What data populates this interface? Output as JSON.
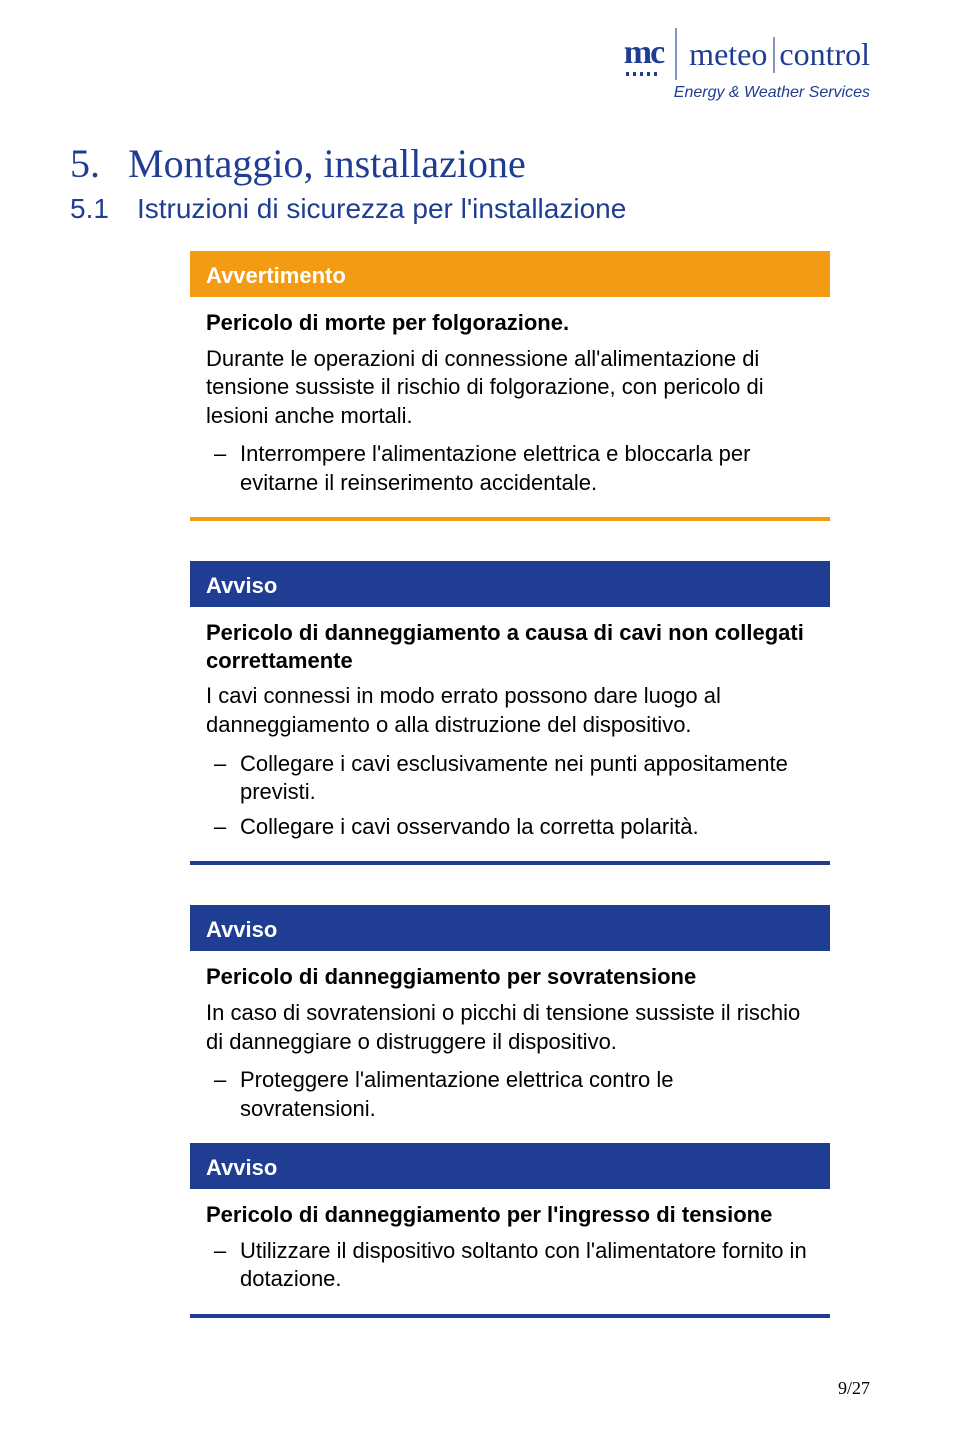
{
  "colors": {
    "brand_blue": "#1f3e93",
    "warn_orange": "#f39b13",
    "text_black": "#000000",
    "white": "#ffffff"
  },
  "logo": {
    "mc": "mc",
    "word1": "meteo",
    "word2": "control",
    "tagline": "Energy & Weather Services"
  },
  "heading": {
    "num": "5.",
    "text": "Montaggio, installazione"
  },
  "subheading": {
    "num": "5.1",
    "text": "Istruzioni di sicurezza per l'installazione"
  },
  "callouts": [
    {
      "type": "warning",
      "title": "Avvertimento",
      "lead": "Pericolo di morte per folgorazione.",
      "paragraph": "Durante le operazioni di connessione all'alimentazione di tensione sussiste il rischio di folgorazione,  con pericolo di lesioni anche mortali.",
      "items": [
        "Interrompere l'alimentazione elettrica e bloccarla per evitarne il reinserimento accidentale."
      ]
    },
    {
      "type": "notice",
      "title": "Avviso",
      "lead": "Pericolo di danneggiamento a causa di cavi non collegati correttamente",
      "paragraph": "I cavi connessi in modo errato possono dare luogo al danneggiamento o alla distruzione del dispositivo.",
      "items": [
        "Collegare i cavi esclusivamente nei punti appositamente previsti.",
        "Collegare i cavi osservando la corretta polarità."
      ]
    },
    {
      "type": "notice",
      "title": "Avviso",
      "lead": "Pericolo di danneggiamento per sovratensione",
      "paragraph": "In caso di sovratensioni o picchi di tensione sussiste il rischio di danneggiare o distruggere il dispositivo.",
      "items": [
        "Proteggere l'alimentazione elettrica contro le sovratensioni."
      ]
    },
    {
      "type": "notice",
      "title": "Avviso",
      "lead": "Pericolo di danneggiamento per l'ingresso di tensione",
      "paragraph": "",
      "items": [
        "Utilizzare il dispositivo soltanto con l'alimentatore fornito in dotazione."
      ]
    }
  ],
  "pagenum": "9/27"
}
